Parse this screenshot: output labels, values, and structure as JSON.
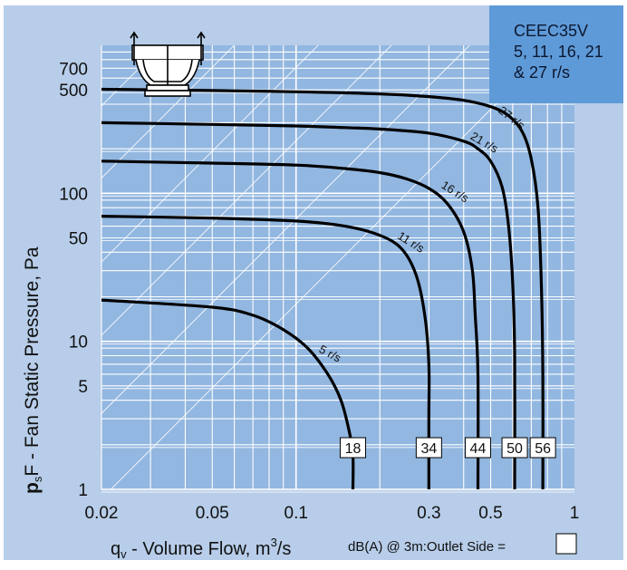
{
  "chart_data": {
    "type": "line",
    "model_box": [
      "CEEC35V",
      "5, 11, 16, 21",
      "& 27 r/s"
    ],
    "xlabel": {
      "main": "q",
      "sub": "v",
      "rest": " - Volume Flow, m",
      "sup": "3",
      "tail": "/s"
    },
    "ylabel": {
      "main": "p",
      "sub": "s",
      "rest": "F - Fan Static Pressure, Pa"
    },
    "footnote": "dB(A) @ 3m:Outlet  Side =",
    "x_scale": "log",
    "y_scale": "log",
    "xlim": [
      0.02,
      1.0
    ],
    "ylim": [
      1,
      1000
    ],
    "x_tick_labels": [
      {
        "v": 0.02,
        "t": "0.02"
      },
      {
        "v": 0.05,
        "t": "0.05"
      },
      {
        "v": 0.1,
        "t": "0.1"
      },
      {
        "v": 0.3,
        "t": "0.3"
      },
      {
        "v": 0.5,
        "t": "0.5"
      },
      {
        "v": 1.0,
        "t": "1"
      }
    ],
    "y_tick_labels": [
      {
        "v": 1,
        "t": "1"
      },
      {
        "v": 5,
        "t": "5"
      },
      {
        "v": 10,
        "t": "10"
      },
      {
        "v": 50,
        "t": "50"
      },
      {
        "v": 100,
        "t": "100"
      },
      {
        "v": 500,
        "t": "500"
      },
      {
        "v": 700,
        "t": "700"
      }
    ],
    "grid": true,
    "series": [
      {
        "name": "5 r/s",
        "dba": "18",
        "points": [
          [
            0.02,
            19
          ],
          [
            0.05,
            17
          ],
          [
            0.07,
            15
          ],
          [
            0.09,
            12
          ],
          [
            0.11,
            9
          ],
          [
            0.13,
            6
          ],
          [
            0.145,
            4
          ],
          [
            0.155,
            2.5
          ],
          [
            0.16,
            1.7
          ],
          [
            0.16,
            1
          ]
        ]
      },
      {
        "name": "11 r/s",
        "dba": "34",
        "points": [
          [
            0.02,
            70
          ],
          [
            0.05,
            68
          ],
          [
            0.1,
            65
          ],
          [
            0.15,
            60
          ],
          [
            0.2,
            52
          ],
          [
            0.24,
            42
          ],
          [
            0.27,
            28
          ],
          [
            0.29,
            15
          ],
          [
            0.3,
            7
          ],
          [
            0.3,
            3
          ],
          [
            0.3,
            1
          ]
        ]
      },
      {
        "name": "16 r/s",
        "dba": "44",
        "points": [
          [
            0.02,
            165
          ],
          [
            0.05,
            160
          ],
          [
            0.1,
            155
          ],
          [
            0.15,
            147
          ],
          [
            0.2,
            138
          ],
          [
            0.25,
            125
          ],
          [
            0.3,
            108
          ],
          [
            0.35,
            85
          ],
          [
            0.4,
            55
          ],
          [
            0.43,
            30
          ],
          [
            0.44,
            15
          ],
          [
            0.45,
            6
          ],
          [
            0.45,
            1
          ]
        ]
      },
      {
        "name": "21 r/s",
        "dba": "50",
        "points": [
          [
            0.02,
            300
          ],
          [
            0.05,
            292
          ],
          [
            0.1,
            285
          ],
          [
            0.15,
            278
          ],
          [
            0.2,
            272
          ],
          [
            0.3,
            255
          ],
          [
            0.4,
            225
          ],
          [
            0.45,
            200
          ],
          [
            0.5,
            165
          ],
          [
            0.55,
            110
          ],
          [
            0.58,
            60
          ],
          [
            0.6,
            25
          ],
          [
            0.61,
            8
          ],
          [
            0.61,
            1
          ]
        ]
      },
      {
        "name": "27 r/s",
        "dba": "56",
        "points": [
          [
            0.02,
            505
          ],
          [
            0.05,
            495
          ],
          [
            0.1,
            485
          ],
          [
            0.2,
            470
          ],
          [
            0.3,
            450
          ],
          [
            0.4,
            425
          ],
          [
            0.5,
            385
          ],
          [
            0.58,
            335
          ],
          [
            0.65,
            260
          ],
          [
            0.7,
            170
          ],
          [
            0.74,
            80
          ],
          [
            0.76,
            25
          ],
          [
            0.77,
            6
          ],
          [
            0.77,
            1
          ]
        ]
      }
    ]
  }
}
